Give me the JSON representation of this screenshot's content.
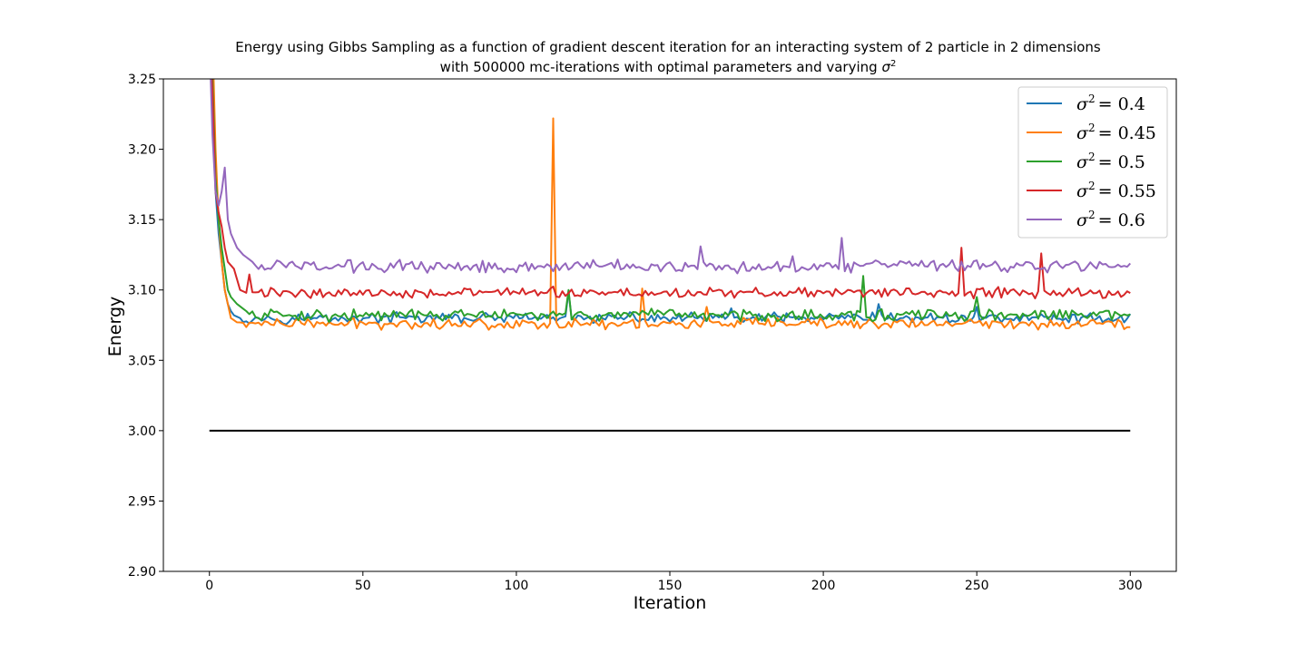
{
  "chart_data": {
    "type": "line",
    "title_line1": "Energy using Gibbs Sampling as a function of gradient descent iteration for an interacting system of 2 particle in 2 dimensions",
    "title_line2_prefix": "with 500000 mc-iterations with optimal parameters and varying ",
    "title_line2_symbol": "σ",
    "title_line2_exp": "2",
    "xlabel": "Iteration",
    "ylabel": "Energy",
    "xlim": [
      -15,
      315
    ],
    "ylim": [
      2.9,
      3.25
    ],
    "xticks": [
      0,
      50,
      100,
      150,
      200,
      250,
      300
    ],
    "yticks": [
      "2.90",
      "2.95",
      "3.00",
      "3.05",
      "3.10",
      "3.15",
      "3.20",
      "3.25"
    ],
    "legend_position": "top-right",
    "reference_line": {
      "y": 3.0,
      "x_start": 0,
      "x_end": 300,
      "color": "#000000"
    },
    "series": [
      {
        "name": "σ² = 0.4",
        "label_symbol": "σ",
        "label_exp": "2",
        "label_value": "= 0.4",
        "color": "#1f77b4",
        "anchors": [
          [
            0,
            3.3
          ],
          [
            1,
            3.26
          ],
          [
            2,
            3.17
          ],
          [
            3,
            3.14
          ],
          [
            4,
            3.12
          ],
          [
            5,
            3.1
          ],
          [
            6,
            3.09
          ],
          [
            7,
            3.085
          ],
          [
            8,
            3.082
          ],
          [
            10,
            3.08
          ],
          [
            300,
            3.08
          ]
        ],
        "base": 3.08,
        "noise": 0.0025,
        "spikes": [
          [
            117,
            3.099
          ],
          [
            170,
            3.087
          ],
          [
            218,
            3.09
          ],
          [
            250,
            3.088
          ]
        ]
      },
      {
        "name": "σ² = 0.45",
        "label_symbol": "σ",
        "label_exp": "2",
        "label_value": "= 0.45",
        "color": "#ff7f0e",
        "anchors": [
          [
            0,
            3.33
          ],
          [
            1,
            3.28
          ],
          [
            2,
            3.2
          ],
          [
            3,
            3.15
          ],
          [
            4,
            3.12
          ],
          [
            5,
            3.1
          ],
          [
            6,
            3.09
          ],
          [
            7,
            3.08
          ],
          [
            9,
            3.077
          ],
          [
            300,
            3.076
          ]
        ],
        "base": 3.076,
        "noise": 0.0025,
        "spikes": [
          [
            112,
            3.222
          ],
          [
            141,
            3.101
          ],
          [
            162,
            3.088
          ]
        ]
      },
      {
        "name": "σ² = 0.5",
        "label_symbol": "σ",
        "label_exp": "2",
        "label_value": "= 0.5",
        "color": "#2ca02c",
        "anchors": [
          [
            0,
            3.31
          ],
          [
            1,
            3.25
          ],
          [
            2,
            3.18
          ],
          [
            3,
            3.15
          ],
          [
            4,
            3.13
          ],
          [
            5,
            3.115
          ],
          [
            6,
            3.1
          ],
          [
            7,
            3.095
          ],
          [
            9,
            3.09
          ],
          [
            12,
            3.085
          ],
          [
            300,
            3.082
          ]
        ],
        "base": 3.082,
        "noise": 0.0028,
        "spikes": [
          [
            117,
            3.1
          ],
          [
            213,
            3.11
          ],
          [
            250,
            3.095
          ]
        ]
      },
      {
        "name": "σ² = 0.55",
        "label_symbol": "σ",
        "label_exp": "2",
        "label_value": "= 0.55",
        "color": "#d62728",
        "anchors": [
          [
            0,
            3.29
          ],
          [
            1,
            3.24
          ],
          [
            2,
            3.17
          ],
          [
            3,
            3.155
          ],
          [
            4,
            3.145
          ],
          [
            5,
            3.13
          ],
          [
            6,
            3.12
          ],
          [
            8,
            3.115
          ],
          [
            10,
            3.1
          ],
          [
            12,
            3.098
          ],
          [
            300,
            3.098
          ]
        ],
        "base": 3.098,
        "noise": 0.0025,
        "spikes": [
          [
            13,
            3.111
          ],
          [
            245,
            3.13
          ],
          [
            271,
            3.126
          ]
        ]
      },
      {
        "name": "σ² = 0.6",
        "label_symbol": "σ",
        "label_exp": "2",
        "label_value": "= 0.6",
        "color": "#9467bd",
        "anchors": [
          [
            0,
            3.28
          ],
          [
            1,
            3.21
          ],
          [
            2,
            3.17
          ],
          [
            3,
            3.16
          ],
          [
            4,
            3.17
          ],
          [
            5,
            3.187
          ],
          [
            6,
            3.15
          ],
          [
            7,
            3.14
          ],
          [
            9,
            3.13
          ],
          [
            11,
            3.125
          ],
          [
            14,
            3.12
          ],
          [
            300,
            3.118
          ]
        ],
        "base": 3.117,
        "noise": 0.003,
        "spikes": [
          [
            160,
            3.131
          ],
          [
            206,
            3.137
          ],
          [
            190,
            3.124
          ]
        ]
      }
    ]
  }
}
